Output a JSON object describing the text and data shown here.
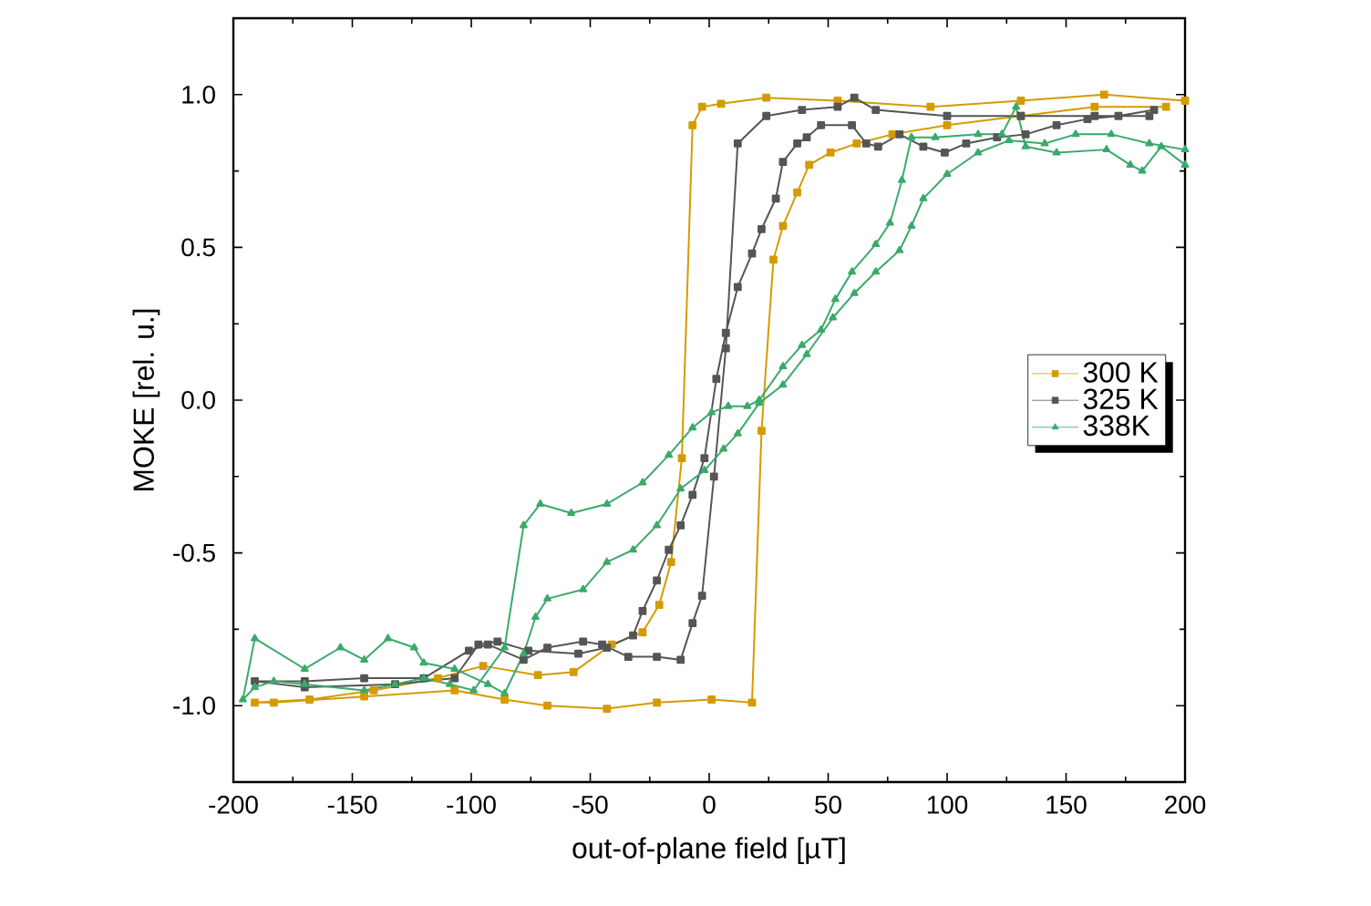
{
  "chart_data": {
    "type": "line",
    "xlabel": "out-of-plane field [µT]",
    "ylabel": "MOKE [rel. u.]",
    "xlim": [
      -200,
      200
    ],
    "ylim": [
      -1.25,
      1.25
    ],
    "xticks": [
      -200,
      -150,
      -100,
      -50,
      0,
      50,
      100,
      150,
      200
    ],
    "yticks": [
      {
        "value": -1,
        "label": "-1.0"
      },
      {
        "value": -0.5,
        "label": "-0.5"
      },
      {
        "value": 0,
        "label": "0.0"
      },
      {
        "value": 0.5,
        "label": "0.5"
      },
      {
        "value": 1,
        "label": "1.0"
      }
    ],
    "grid": false,
    "legend": "right",
    "line_style": "solid",
    "series": [
      {
        "name": "300 K",
        "color": "#d49b00",
        "marker": "square",
        "x": [
          200,
          166,
          131,
          93,
          54,
          24,
          5,
          -3,
          -7,
          -11.5,
          -16,
          -21,
          -28,
          -41,
          -57,
          -72,
          -95,
          -114,
          -141,
          -168,
          -191,
          -183,
          -145,
          -107,
          -86,
          -68,
          -43,
          -22,
          1,
          18,
          22,
          27,
          31,
          37,
          42,
          51,
          62,
          77,
          100,
          131,
          162,
          192
        ],
        "values": [
          0.98,
          1.0,
          0.98,
          0.96,
          0.98,
          0.99,
          0.97,
          0.96,
          0.9,
          -0.19,
          -0.53,
          -0.67,
          -0.76,
          -0.8,
          -0.89,
          -0.9,
          -0.87,
          -0.91,
          -0.95,
          -0.98,
          -0.99,
          -0.99,
          -0.97,
          -0.95,
          -0.98,
          -1.0,
          -1.01,
          -0.99,
          -0.98,
          -0.99,
          -0.1,
          0.46,
          0.57,
          0.68,
          0.77,
          0.81,
          0.84,
          0.87,
          0.9,
          0.93,
          0.96,
          0.96
        ]
      },
      {
        "name": "325 K",
        "color": "#555555",
        "marker": "square",
        "x": [
          185,
          162,
          131,
          100,
          70,
          61,
          54,
          39,
          24,
          12,
          7,
          2,
          -3,
          -7,
          -12,
          -22,
          -34,
          -45,
          -53,
          -68,
          -78,
          -93,
          -101,
          -120,
          -145,
          -170,
          -191,
          -170,
          -132,
          -107,
          -97,
          -89,
          -76,
          -55,
          -43,
          -32,
          -28,
          -22,
          -17,
          -12,
          -7,
          -2,
          3,
          7,
          12,
          18,
          22,
          28,
          31,
          37,
          41,
          47,
          60,
          66,
          71,
          80,
          90,
          99,
          108,
          121,
          133,
          146,
          159,
          172,
          187
        ],
        "values": [
          0.93,
          0.93,
          0.93,
          0.93,
          0.95,
          0.99,
          0.96,
          0.95,
          0.93,
          0.84,
          0.17,
          -0.25,
          -0.64,
          -0.73,
          -0.85,
          -0.84,
          -0.84,
          -0.8,
          -0.79,
          -0.81,
          -0.85,
          -0.8,
          -0.82,
          -0.91,
          -0.91,
          -0.92,
          -0.92,
          -0.94,
          -0.93,
          -0.91,
          -0.8,
          -0.79,
          -0.82,
          -0.83,
          -0.81,
          -0.77,
          -0.69,
          -0.59,
          -0.49,
          -0.41,
          -0.31,
          -0.19,
          0.07,
          0.22,
          0.37,
          0.48,
          0.56,
          0.66,
          0.78,
          0.84,
          0.86,
          0.9,
          0.9,
          0.84,
          0.83,
          0.87,
          0.83,
          0.81,
          0.84,
          0.86,
          0.87,
          0.9,
          0.92,
          0.93,
          0.95
        ]
      },
      {
        "name": "338K",
        "color": "#3aaa6a",
        "marker": "triangle",
        "x": [
          200,
          190,
          182,
          177,
          167,
          146,
          133,
          129,
          123,
          113,
          95,
          85,
          81,
          76,
          70,
          60,
          53,
          47,
          39,
          31,
          21,
          16,
          8,
          1,
          -7,
          -17,
          -28,
          -43,
          -58,
          -71,
          -78,
          -86,
          -99,
          -109,
          -120,
          -132,
          -145,
          -170,
          -183,
          -191,
          -196,
          -191,
          -170,
          -155,
          -145,
          -135,
          -124,
          -120,
          -107,
          -93,
          -86,
          -78,
          -73,
          -68,
          -53,
          -43,
          -32,
          -22,
          -12,
          -2,
          6,
          12,
          21,
          31,
          41,
          52,
          61,
          70,
          80,
          85,
          90,
          100,
          113,
          126,
          141,
          154,
          169,
          185,
          200
        ],
        "values": [
          0.77,
          0.83,
          0.75,
          0.77,
          0.82,
          0.81,
          0.83,
          0.96,
          0.87,
          0.87,
          0.86,
          0.86,
          0.72,
          0.58,
          0.51,
          0.42,
          0.33,
          0.23,
          0.18,
          0.11,
          0.0,
          -0.02,
          -0.02,
          -0.04,
          -0.09,
          -0.18,
          -0.27,
          -0.34,
          -0.37,
          -0.34,
          -0.41,
          -0.81,
          -0.95,
          -0.93,
          -0.91,
          -0.93,
          -0.95,
          -0.93,
          -0.92,
          -0.94,
          -0.98,
          -0.78,
          -0.88,
          -0.81,
          -0.85,
          -0.78,
          -0.81,
          -0.86,
          -0.88,
          -0.93,
          -0.96,
          -0.83,
          -0.71,
          -0.65,
          -0.62,
          -0.53,
          -0.49,
          -0.41,
          -0.29,
          -0.23,
          -0.16,
          -0.11,
          -0.01,
          0.05,
          0.15,
          0.27,
          0.35,
          0.42,
          0.49,
          0.57,
          0.66,
          0.74,
          0.81,
          0.85,
          0.84,
          0.87,
          0.87,
          0.84,
          0.82
        ]
      }
    ]
  }
}
